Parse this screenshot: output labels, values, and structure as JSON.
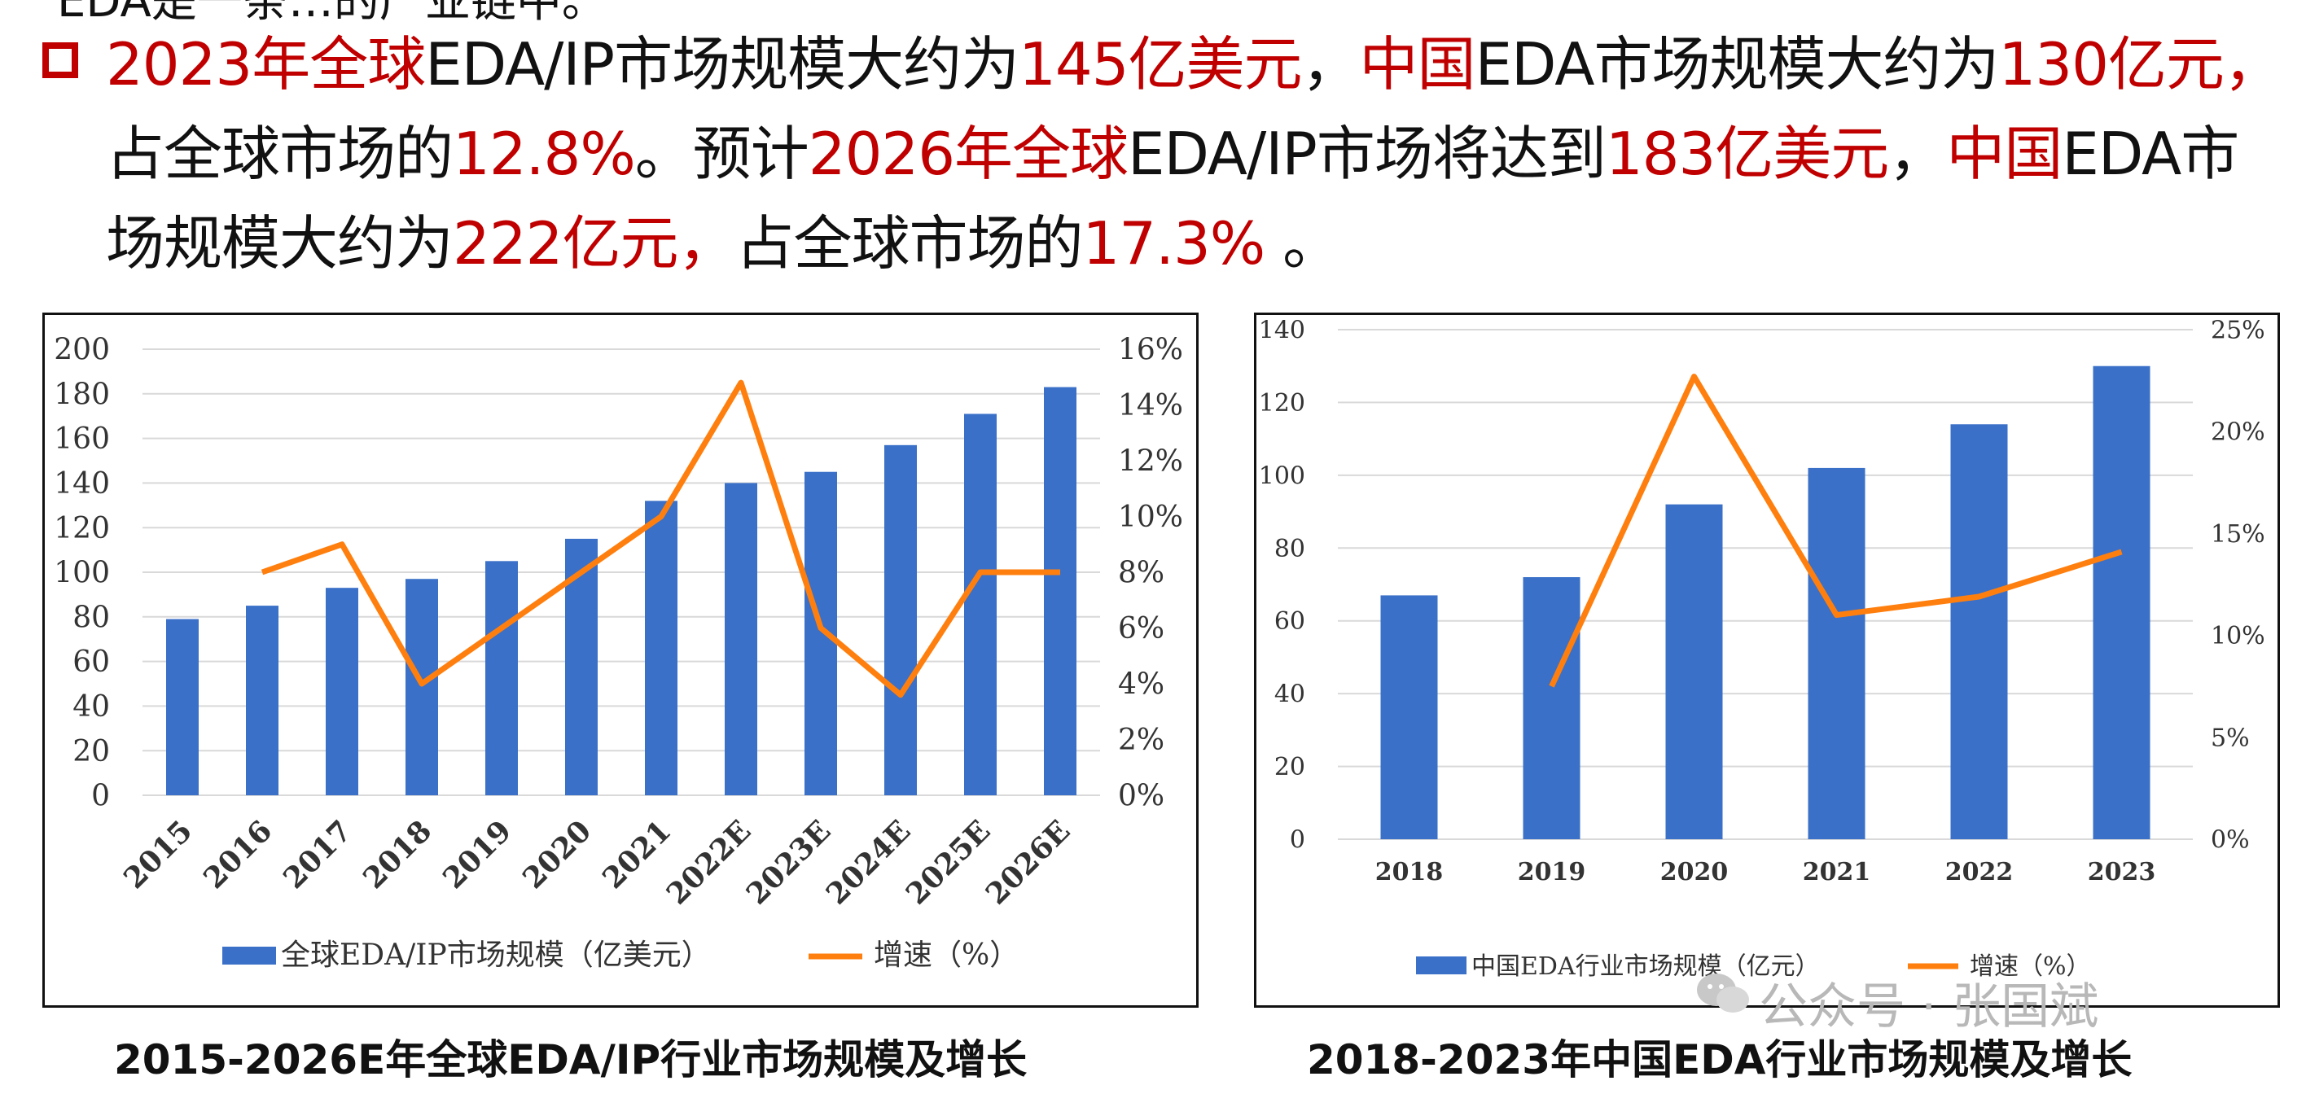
{
  "headline": {
    "top_cut_text": "EDA是一条…的产业链中。",
    "segments": [
      {
        "text": "2023年全球",
        "red": true
      },
      {
        "text": "EDA/IP市场规模大约为",
        "red": false
      },
      {
        "text": "145亿美元",
        "red": true
      },
      {
        "text": "，",
        "red": false
      },
      {
        "text": "中国",
        "red": true
      },
      {
        "text": "EDA市场规模大约为",
        "red": false
      },
      {
        "text": "130亿元，",
        "red": true
      },
      {
        "text": "占全球市场的",
        "red": false
      },
      {
        "text": "12.8%",
        "red": true
      },
      {
        "text": "。预计",
        "red": false
      },
      {
        "text": "2026年全球",
        "red": true
      },
      {
        "text": "EDA/IP市场将达到",
        "red": false
      },
      {
        "text": "183亿美元",
        "red": true
      },
      {
        "text": "，",
        "red": false
      },
      {
        "text": "中国",
        "red": true
      },
      {
        "text": "EDA市场规模大约为",
        "red": false
      },
      {
        "text": "222亿元，",
        "red": true
      },
      {
        "text": "占全球市场的",
        "red": false
      },
      {
        "text": "17.3%",
        "red": true
      },
      {
        "text": " 。",
        "red": false
      }
    ]
  },
  "captions": {
    "left": "2015-2026E年全球EDA/IP行业市场规模及增长",
    "right": "2018-2023年中国EDA行业市场规模及增长"
  },
  "watermark": "公众号 · 张国斌",
  "colors": {
    "bar": "#3a70c8",
    "line": "#ff7f0e",
    "accent": "#c00000"
  },
  "chart_data": [
    {
      "type": "bar",
      "title": "2015-2026E年全球EDA/IP行业市场规模及增长",
      "categories": [
        "2015",
        "2016",
        "2017",
        "2018",
        "2019",
        "2020",
        "2021",
        "2022E",
        "2023E",
        "2024E",
        "2025E",
        "2026E"
      ],
      "series": [
        {
          "name": "全球EDA/IP市场规模（亿美元）",
          "type": "bar",
          "axis": "left",
          "values": [
            79,
            85,
            93,
            97,
            105,
            115,
            132,
            140,
            145,
            157,
            171,
            183
          ]
        },
        {
          "name": "增速（%）",
          "type": "line",
          "axis": "right",
          "values": [
            null,
            8.0,
            9.0,
            4.0,
            6.0,
            8.0,
            10.0,
            14.8,
            6.0,
            3.6,
            8.0,
            8.0
          ]
        }
      ],
      "ylim": [
        0,
        200
      ],
      "yticks": [
        "0",
        "20",
        "40",
        "60",
        "80",
        "100",
        "120",
        "140",
        "160",
        "180",
        "200"
      ],
      "y2lim": [
        0,
        16
      ],
      "y2ticks": [
        "0%",
        "2%",
        "4%",
        "6%",
        "8%",
        "10%",
        "12%",
        "14%",
        "16%"
      ],
      "legend": "bottom"
    },
    {
      "type": "bar",
      "title": "2018-2023年中国EDA行业市场规模及增长",
      "categories": [
        "2018",
        "2019",
        "2020",
        "2021",
        "2022",
        "2023"
      ],
      "series": [
        {
          "name": "中国EDA行业市场规模（亿元）",
          "type": "bar",
          "axis": "left",
          "values": [
            67,
            72,
            92,
            102,
            114,
            130
          ]
        },
        {
          "name": "增速（%）",
          "type": "line",
          "axis": "right",
          "values": [
            null,
            7.5,
            22.7,
            11.0,
            11.9,
            14.1
          ]
        }
      ],
      "ylim": [
        0,
        140
      ],
      "yticks": [
        "0",
        "20",
        "40",
        "60",
        "80",
        "100",
        "120",
        "140"
      ],
      "y2lim": [
        0,
        25
      ],
      "y2ticks": [
        "0%",
        "5%",
        "10%",
        "15%",
        "20%",
        "25%"
      ],
      "legend": "bottom"
    }
  ]
}
